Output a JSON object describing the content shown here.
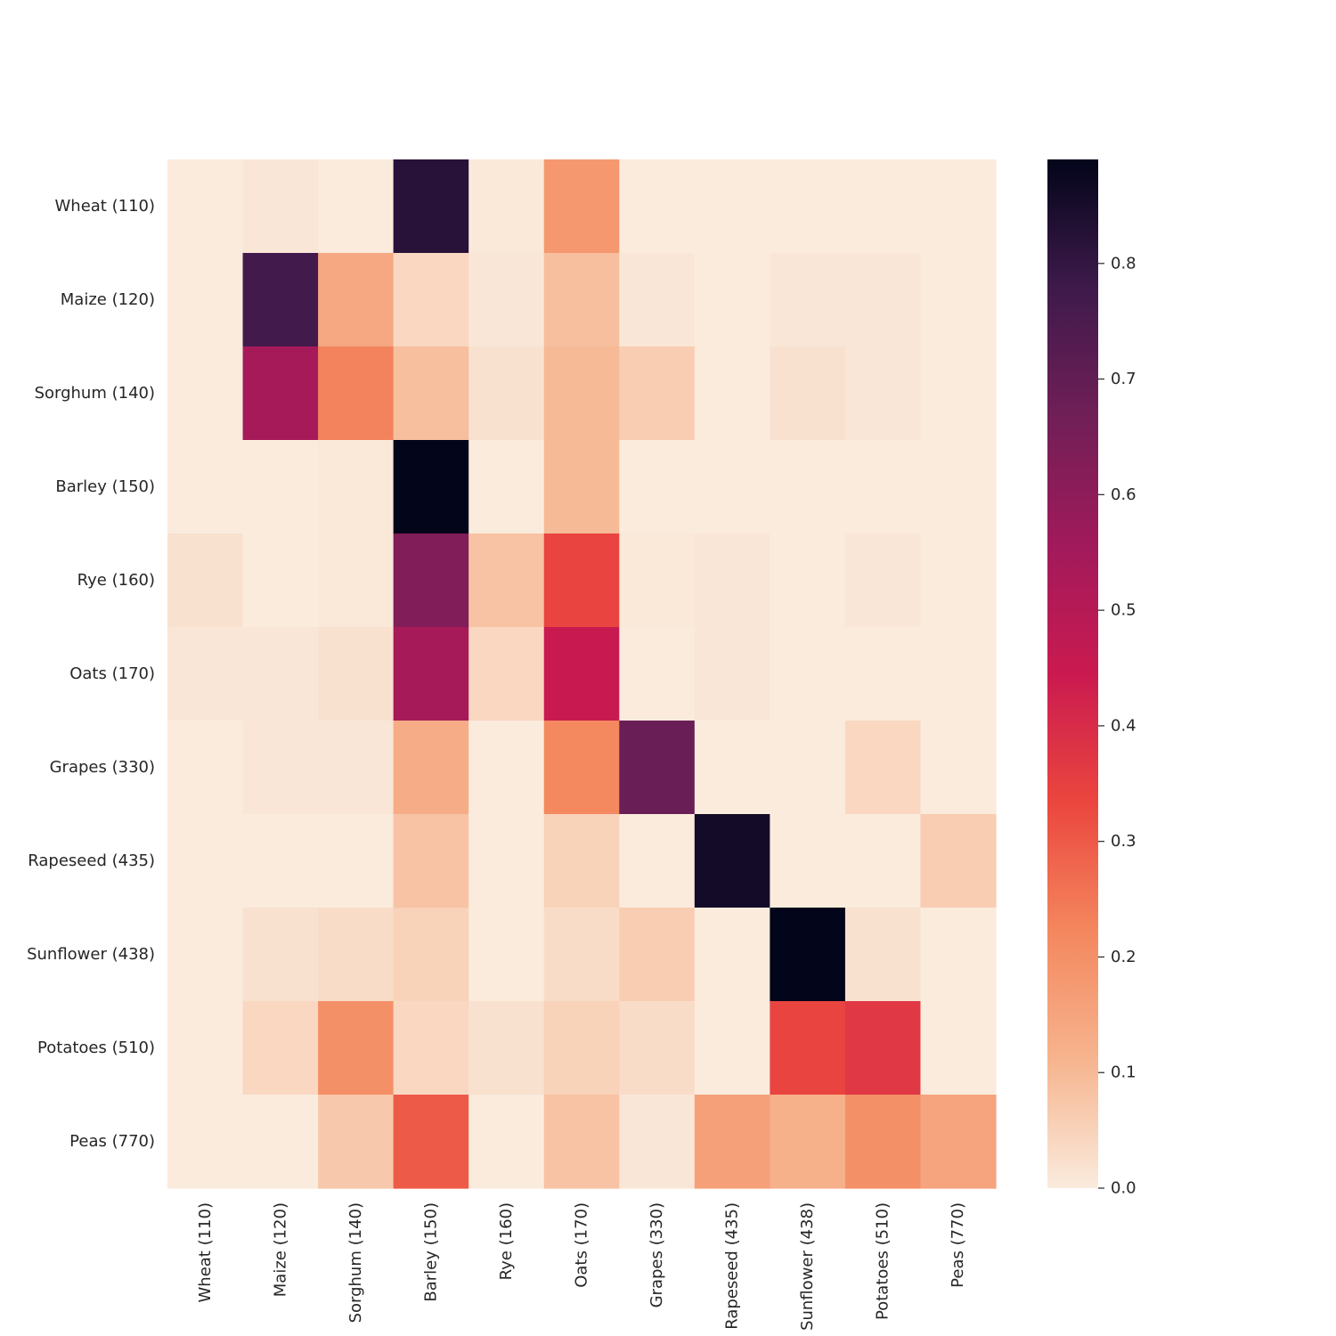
{
  "chart_data": {
    "type": "heatmap",
    "title": "",
    "xlabel": "",
    "ylabel": "",
    "row_labels": [
      "Wheat (110)",
      "Maize (120)",
      "Sorghum (140)",
      "Barley (150)",
      "Rye (160)",
      "Oats (170)",
      "Grapes (330)",
      "Rapeseed (435)",
      "Sunflower (438)",
      "Potatoes (510)",
      "Peas (770)"
    ],
    "col_labels": [
      "Wheat (110)",
      "Maize (120)",
      "Sorghum (140)",
      "Barley (150)",
      "Rye (160)",
      "Oats (170)",
      "Grapes (330)",
      "Rapeseed (435)",
      "Sunflower (438)",
      "Potatoes (510)",
      "Peas (770)"
    ],
    "values": [
      [
        0.0,
        0.01,
        0.0,
        0.82,
        0.005,
        0.18,
        0.0,
        0.0,
        0.0,
        0.0,
        0.0
      ],
      [
        0.0,
        0.77,
        0.14,
        0.04,
        0.01,
        0.09,
        0.01,
        0.0,
        0.01,
        0.01,
        0.0
      ],
      [
        0.0,
        0.54,
        0.23,
        0.09,
        0.02,
        0.1,
        0.06,
        0.0,
        0.02,
        0.01,
        0.0
      ],
      [
        0.0,
        0.0,
        0.005,
        0.89,
        0.0,
        0.1,
        0.0,
        0.0,
        0.0,
        0.0,
        0.0
      ],
      [
        0.02,
        0.0,
        0.005,
        0.63,
        0.08,
        0.34,
        0.005,
        0.01,
        0.0,
        0.01,
        0.0
      ],
      [
        0.01,
        0.01,
        0.02,
        0.54,
        0.04,
        0.45,
        0.0,
        0.01,
        0.0,
        0.0,
        0.0
      ],
      [
        0.0,
        0.01,
        0.01,
        0.13,
        0.0,
        0.22,
        0.68,
        0.0,
        0.0,
        0.04,
        0.0
      ],
      [
        0.0,
        0.0,
        0.0,
        0.08,
        0.0,
        0.05,
        0.0,
        0.86,
        0.0,
        0.0,
        0.06
      ],
      [
        0.0,
        0.02,
        0.03,
        0.05,
        0.0,
        0.03,
        0.06,
        0.0,
        0.89,
        0.02,
        0.0
      ],
      [
        0.0,
        0.04,
        0.2,
        0.04,
        0.02,
        0.05,
        0.03,
        0.0,
        0.34,
        0.37,
        0.0
      ],
      [
        0.0,
        0.0,
        0.07,
        0.3,
        0.0,
        0.08,
        0.01,
        0.16,
        0.12,
        0.2,
        0.15
      ]
    ],
    "colorbar": {
      "min": 0.0,
      "max": 0.89,
      "ticks": [
        0.0,
        0.1,
        0.2,
        0.3,
        0.4,
        0.5,
        0.6,
        0.7,
        0.8
      ],
      "tick_labels": [
        "0.0",
        "0.1",
        "0.2",
        "0.3",
        "0.4",
        "0.5",
        "0.6",
        "0.7",
        "0.8"
      ],
      "colormap": [
        "#faebdd",
        "#f6b48e",
        "#f4875e",
        "#eb463e",
        "#ca1a50",
        "#a11a5b",
        "#701f57",
        "#3e1a4b",
        "#03051a"
      ]
    },
    "grid": false,
    "legend": "colorbar-right"
  }
}
